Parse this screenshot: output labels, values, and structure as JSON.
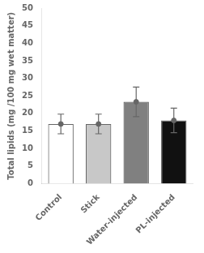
{
  "chart_data": {
    "type": "bar",
    "categories": [
      "Control",
      "Stick",
      "Water-injected",
      "PL-injected"
    ],
    "values": [
      17.0,
      17.0,
      23.3,
      18.0
    ],
    "errors": [
      2.8,
      2.8,
      4.2,
      3.5
    ],
    "colors": [
      "#ffffff",
      "#c8c8c8",
      "#808080",
      "#111111"
    ],
    "ylabel": "Total lipids (mg /100 mg wet matter)",
    "ylim": [
      0,
      50
    ],
    "yticks": [
      0,
      5,
      10,
      15,
      20,
      25,
      30,
      35,
      40,
      45,
      50
    ],
    "grid": false
  }
}
